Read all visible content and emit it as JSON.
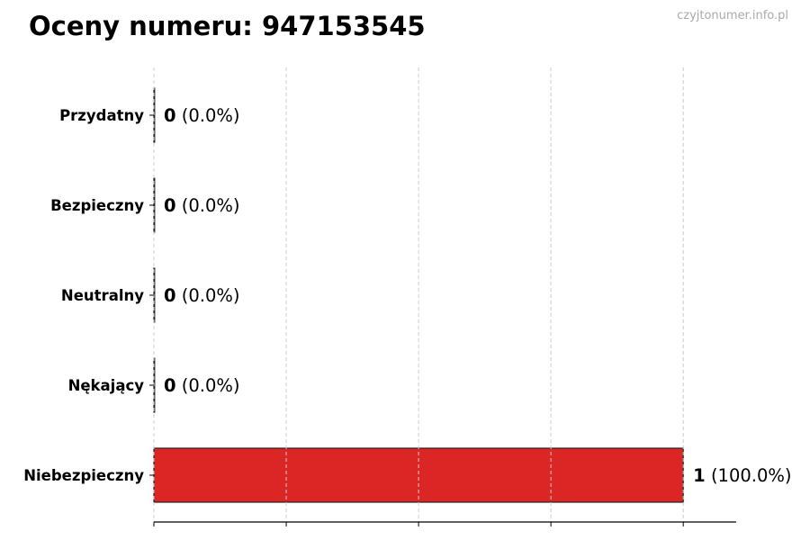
{
  "chart_data": {
    "type": "bar",
    "orientation": "horizontal",
    "title": "Oceny numeru: 947153545",
    "watermark": "czyjtonumer.info.pl",
    "categories": [
      "Przydatny",
      "Bezpieczny",
      "Neutralny",
      "Nękający",
      "Niebezpieczny"
    ],
    "values": [
      0,
      0,
      0,
      0,
      1
    ],
    "value_labels": [
      "0",
      "0",
      "0",
      "0",
      "1"
    ],
    "percent_labels": [
      "(0.0%)",
      "(0.0%)",
      "(0.0%)",
      "(0.0%)",
      "(100.0%)"
    ],
    "xlim": [
      0,
      1.1
    ],
    "xticks": [
      0,
      0.25,
      0.5,
      0.75,
      1.0
    ],
    "grid": "vertical dashed",
    "colors": {
      "bar": "#dc2626",
      "edge": "#222222",
      "grid": "#cccccc"
    }
  }
}
